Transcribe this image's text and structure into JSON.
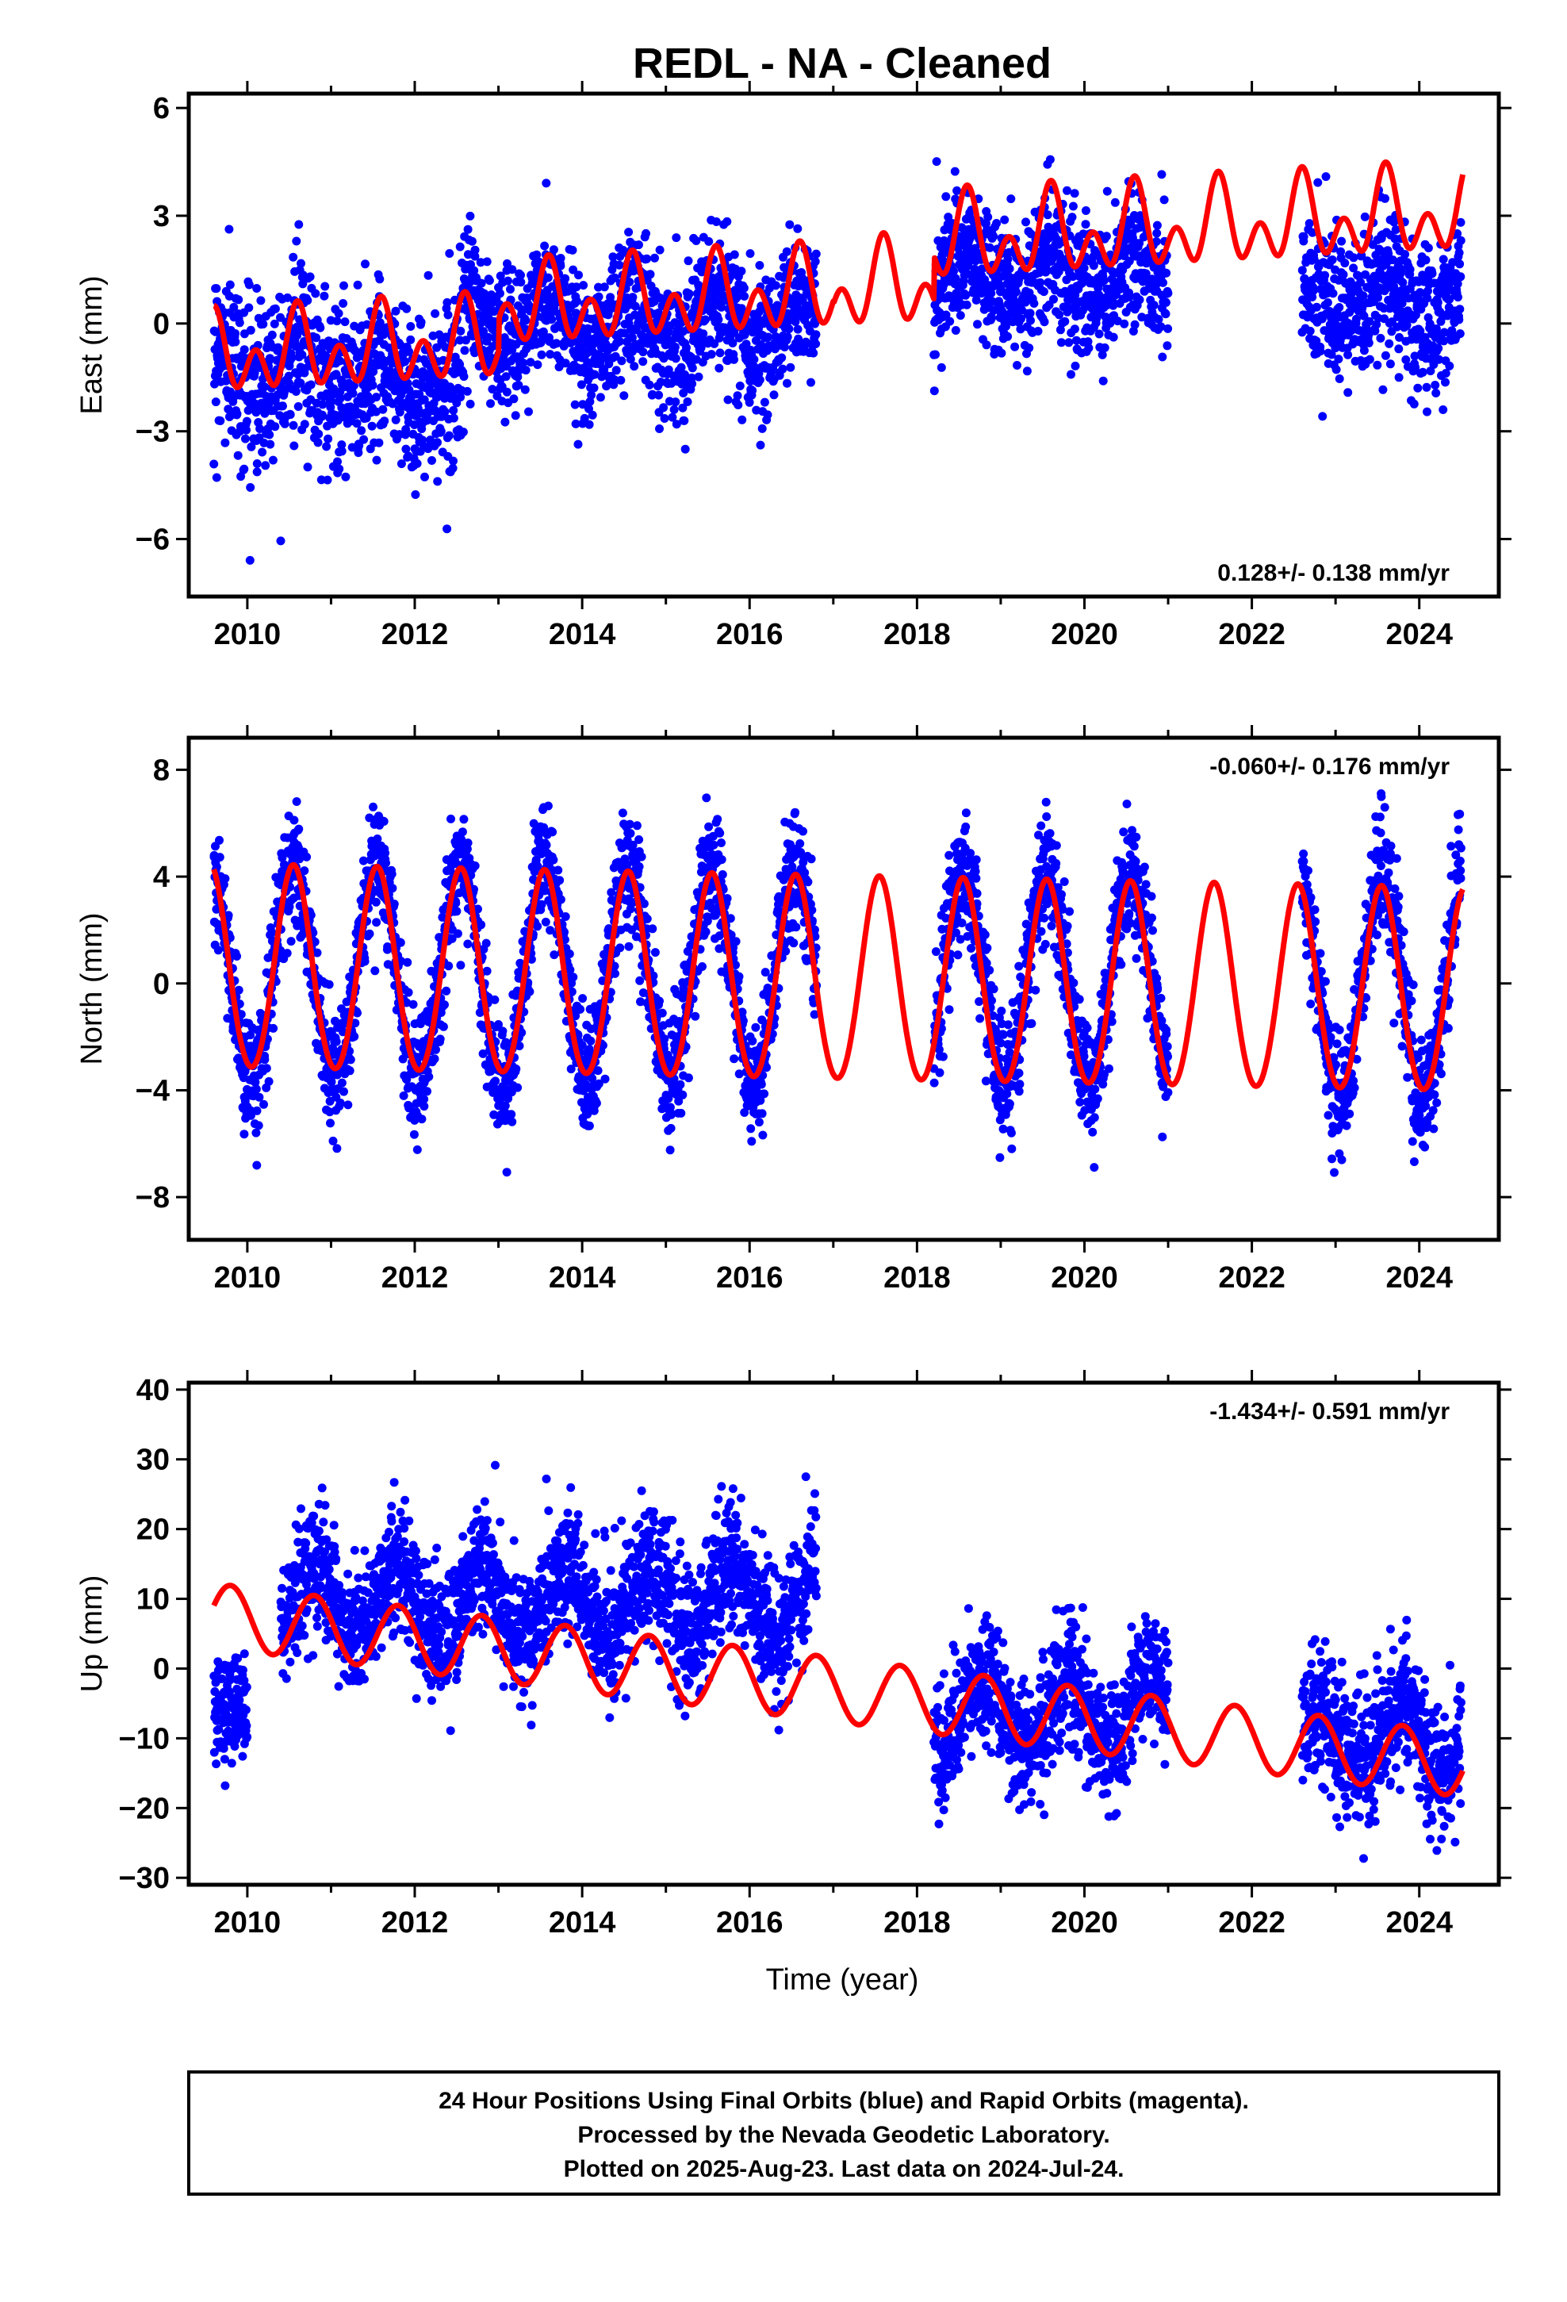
{
  "chart_data": {
    "type": "scatter",
    "title": "REDL  - NA - Cleaned",
    "xlabel": "Time (year)",
    "xlim": [
      2009.3,
      2024.95
    ],
    "xticks": [
      "2010",
      "2012",
      "2014",
      "2016",
      "2018",
      "2020",
      "2022",
      "2024"
    ],
    "grid": false,
    "series_colors": {
      "points": "#0000ff",
      "model": "#ff0000"
    },
    "panels": [
      {
        "name": "east",
        "ylabel": "East (mm)",
        "ylim": [
          -7.6,
          6.4
        ],
        "yticks": [
          "6",
          "3",
          "0",
          "−3",
          "−6"
        ],
        "rate_label": "0.128+/- 0.138 mm/yr",
        "rate_position": "bottom-right",
        "model": {
          "a": -0.95,
          "b": 0.128,
          "t0": 2009.6,
          "annual": [
            {
              "from": 2009.6,
              "to": 2017.0,
              "amp": 0.65
            },
            {
              "from": 2017.0,
              "to": 2024.6,
              "amp": 0.75
            }
          ],
          "semi_annual": 0.8,
          "steps": [
            {
              "t": 2013.0,
              "d": 0.9
            },
            {
              "t": 2018.2,
              "d": 1.2
            }
          ]
        },
        "data_segments": [
          {
            "from": 2009.6,
            "to": 2011.2,
            "offset": -1.2,
            "scatter": 1.2,
            "annual_amp": 1.0
          },
          {
            "from": 2011.2,
            "to": 2012.6,
            "offset": -1.6,
            "scatter": 1.1,
            "annual_amp": 1.0
          },
          {
            "from": 2012.6,
            "to": 2016.8,
            "offset": 0.0,
            "scatter": 0.95,
            "annual_amp": 1.1
          },
          {
            "from": 2018.2,
            "to": 2021.0,
            "offset": 1.3,
            "scatter": 0.95,
            "annual_amp": 0.9
          },
          {
            "from": 2022.6,
            "to": 2024.5,
            "offset": 0.6,
            "scatter": 1.0,
            "annual_amp": 1.0
          }
        ]
      },
      {
        "name": "north",
        "ylabel": "North (mm)",
        "ylim": [
          -9.6,
          9.2
        ],
        "yticks": [
          "8",
          "4",
          "0",
          "−4",
          "−8"
        ],
        "rate_label": "-0.060+/- 0.176 mm/yr",
        "rate_position": "top-right",
        "model": {
          "a": 0.5,
          "b": -0.06,
          "t0": 2009.6,
          "annual": [
            {
              "from": 2009.6,
              "to": 2024.6,
              "amp": 3.8
            }
          ],
          "semi_annual": 0.2,
          "phase_peak": 2009.55,
          "steps": []
        },
        "data_segments": [
          {
            "from": 2009.6,
            "to": 2016.8,
            "offset": 0.3,
            "scatter": 1.1,
            "annual_amp": 4.0
          },
          {
            "from": 2018.2,
            "to": 2021.0,
            "offset": 0.2,
            "scatter": 1.1,
            "annual_amp": 4.0
          },
          {
            "from": 2022.6,
            "to": 2024.5,
            "offset": -0.1,
            "scatter": 1.1,
            "annual_amp": 4.2
          }
        ]
      },
      {
        "name": "up",
        "ylabel": "Up (mm)",
        "ylim": [
          -31,
          41
        ],
        "yticks": [
          "40",
          "30",
          "20",
          "10",
          "0",
          "−10",
          "−20",
          "−30"
        ],
        "rate_label": "-1.434+/- 0.591 mm/yr",
        "rate_position": "top-right",
        "model": {
          "a": 7.6,
          "b": -1.434,
          "t0": 2009.6,
          "annual": [
            {
              "from": 2009.6,
              "to": 2024.6,
              "amp": 4.6
            }
          ],
          "semi_annual": 0.0,
          "phase_peak": 2009.8,
          "steps": []
        },
        "data_segments": [
          {
            "from": 2009.6,
            "to": 2010.0,
            "offset": -8.0,
            "scatter": 4.0,
            "annual_amp": 3.0
          },
          {
            "from": 2010.4,
            "to": 2016.8,
            "offset": 9.5,
            "scatter": 4.5,
            "annual_amp": 5.0
          },
          {
            "from": 2018.2,
            "to": 2021.0,
            "offset": -6.0,
            "scatter": 4.5,
            "annual_amp": 5.0
          },
          {
            "from": 2022.6,
            "to": 2024.5,
            "offset": -10.0,
            "scatter": 5.0,
            "annual_amp": 5.0
          }
        ]
      }
    ]
  },
  "footer": {
    "line1": "24 Hour Positions Using Final Orbits (blue) and Rapid Orbits (magenta).",
    "line2": "Processed by the Nevada Geodetic Laboratory.",
    "line3": "Plotted on 2025-Aug-23. Last data on 2024-Jul-24."
  }
}
